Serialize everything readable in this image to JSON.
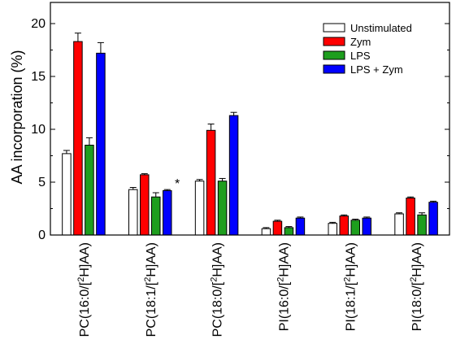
{
  "chart_data": {
    "type": "bar",
    "ylabel": "AA incorporation (%)",
    "ylim": [
      0,
      22
    ],
    "yticks": [
      0,
      5,
      10,
      15,
      20
    ],
    "grid": false,
    "legend_position": "top-right",
    "categories": [
      "PC(16:0/[2H]AA)",
      "PC(18:1/[2H]AA)",
      "PC(18:0/[2H]AA)",
      "PI(16:0/[2H]AA)",
      "PI(18:1/[2H]AA)",
      "PI(18:0/[2H]AA)"
    ],
    "series": [
      {
        "name": "Unstimulated",
        "color": "#ffffff",
        "values": [
          7.7,
          4.3,
          5.1,
          0.6,
          1.1,
          2.0
        ],
        "errors": [
          0.3,
          0.2,
          0.15,
          0.1,
          0.1,
          0.1
        ]
      },
      {
        "name": "Zym",
        "color": "#ff0000",
        "values": [
          18.3,
          5.7,
          9.9,
          1.3,
          1.8,
          3.5
        ],
        "errors": [
          0.8,
          0.1,
          0.6,
          0.1,
          0.1,
          0.1
        ]
      },
      {
        "name": "LPS",
        "color": "#1e9e1e",
        "values": [
          8.5,
          3.6,
          5.1,
          0.7,
          1.4,
          1.9
        ],
        "errors": [
          0.7,
          0.4,
          0.25,
          0.1,
          0.1,
          0.2
        ]
      },
      {
        "name": "LPS + Zym",
        "color": "#0000ff",
        "values": [
          17.2,
          4.2,
          11.3,
          1.6,
          1.6,
          3.1
        ],
        "errors": [
          1.0,
          0.1,
          0.3,
          0.1,
          0.1,
          0.1
        ]
      }
    ],
    "annotations": [
      {
        "text": "*",
        "category_index": 1,
        "series_index": 3
      }
    ]
  }
}
